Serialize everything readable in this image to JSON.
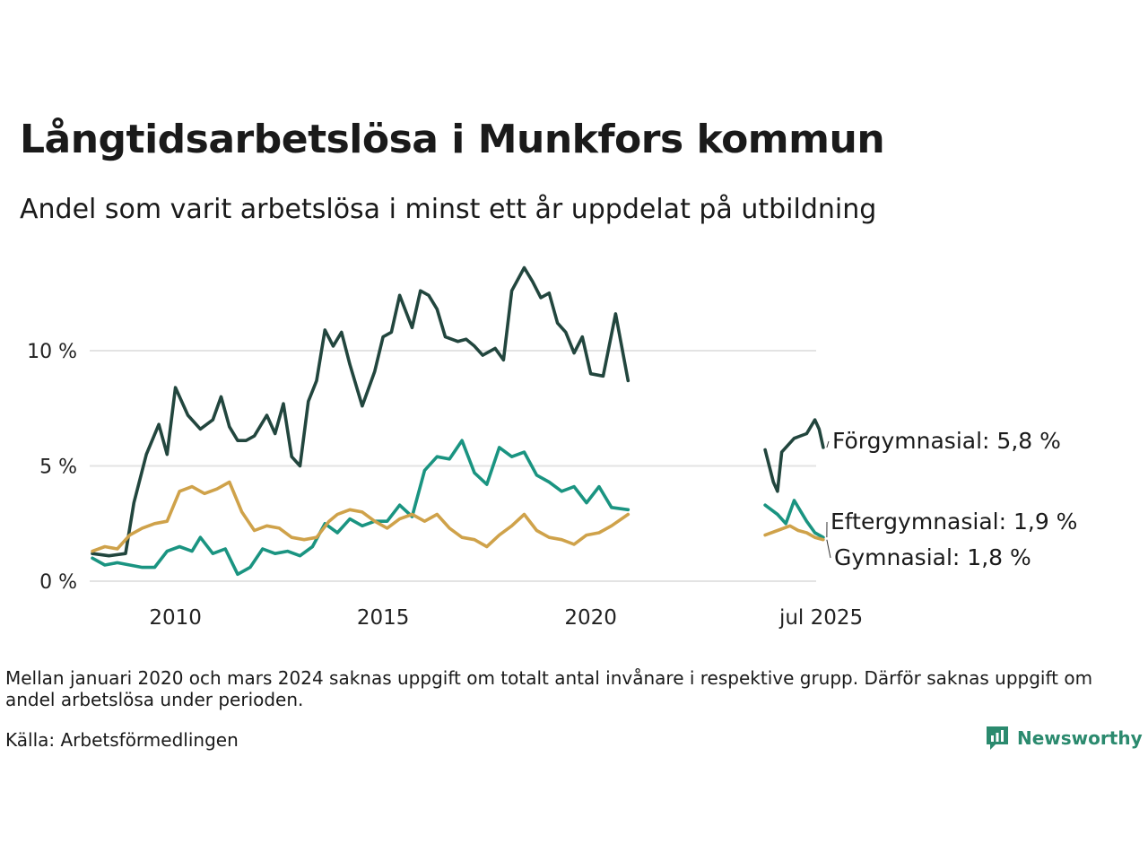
{
  "title": "Långtidsarbetslösa i Munkfors kommun",
  "subtitle": "Andel som varit arbetslösa i minst ett år uppdelat på utbildning",
  "note": "Mellan januari 2020 och mars 2024 saknas uppgift om totalt antal invånare i respektive grupp. Därför saknas uppgift om andel arbetslösa under perioden.",
  "source": "Källa: Arbetsförmedlingen",
  "brand": "Newsworthy",
  "colors": {
    "forgymnasial": "#22463e",
    "eftergymnasial": "#1a9481",
    "gymnasial": "#cfa24a",
    "grid": "#e3e3e3",
    "brand": "#2b8a6e"
  },
  "chart_data": {
    "type": "line",
    "x_ticks": [
      "2010",
      "2015",
      "2020",
      "jul 2025"
    ],
    "y_ticks": [
      "0 %",
      "5 %",
      "10 %"
    ],
    "ylim": [
      0,
      14
    ],
    "grid": true,
    "gap": "Mellan januari 2020 och mars 2024 saknas uppgift",
    "series": [
      {
        "name": "Förgymnasial",
        "end_label": "Förgymnasial: 5,8 %",
        "segments": [
          {
            "x": [
              2008.0,
              2008.4,
              2008.8,
              2009.0,
              2009.3,
              2009.6,
              2009.8,
              2010.0,
              2010.3,
              2010.6,
              2010.9,
              2011.1,
              2011.3,
              2011.5,
              2011.7,
              2011.9,
              2012.2,
              2012.4,
              2012.6,
              2012.8,
              2013.0,
              2013.2,
              2013.4,
              2013.6,
              2013.8,
              2014.0,
              2014.2,
              2014.5,
              2014.8,
              2015.0,
              2015.2,
              2015.4,
              2015.7,
              2015.9,
              2016.1,
              2016.3,
              2016.5,
              2016.8,
              2017.0,
              2017.2,
              2017.4,
              2017.7,
              2017.9,
              2018.1,
              2018.4,
              2018.6,
              2018.8,
              2019.0,
              2019.2,
              2019.4,
              2019.6,
              2019.8,
              2020.0,
              2020.3,
              2020.6,
              2020.9
            ],
            "y": [
              1.2,
              1.1,
              1.2,
              3.4,
              5.5,
              6.8,
              5.5,
              8.4,
              7.2,
              6.6,
              7.0,
              8.0,
              6.7,
              6.1,
              6.1,
              6.3,
              7.2,
              6.4,
              7.7,
              5.4,
              5.0,
              7.8,
              8.7,
              10.9,
              10.2,
              10.8,
              9.4,
              7.6,
              9.1,
              10.6,
              10.8,
              12.4,
              11.0,
              12.6,
              12.4,
              11.8,
              10.6,
              10.4,
              10.5,
              10.2,
              9.8,
              10.1,
              9.6,
              12.6,
              13.6,
              13.0,
              12.3,
              12.5,
              11.2,
              10.8,
              9.9,
              10.6,
              9.0,
              8.9,
              11.6,
              8.7
            ]
          },
          {
            "x": [
              2024.2,
              2024.4,
              2024.5,
              2024.6,
              2024.9,
              2025.2,
              2025.4,
              2025.5,
              2025.6
            ],
            "y": [
              5.7,
              4.3,
              3.9,
              5.6,
              6.2,
              6.4,
              7.0,
              6.6,
              5.8
            ]
          }
        ]
      },
      {
        "name": "Eftergymnasial",
        "end_label": "Eftergymnasial: 1,9 %",
        "segments": [
          {
            "x": [
              2008.0,
              2008.3,
              2008.6,
              2008.9,
              2009.2,
              2009.5,
              2009.8,
              2010.1,
              2010.4,
              2010.6,
              2010.9,
              2011.2,
              2011.5,
              2011.8,
              2012.1,
              2012.4,
              2012.7,
              2013.0,
              2013.3,
              2013.6,
              2013.9,
              2014.2,
              2014.5,
              2014.8,
              2015.1,
              2015.4,
              2015.7,
              2016.0,
              2016.3,
              2016.6,
              2016.9,
              2017.2,
              2017.5,
              2017.8,
              2018.1,
              2018.4,
              2018.7,
              2019.0,
              2019.3,
              2019.6,
              2019.9,
              2020.2,
              2020.5,
              2020.9
            ],
            "y": [
              1.0,
              0.7,
              0.8,
              0.7,
              0.6,
              0.6,
              1.3,
              1.5,
              1.3,
              1.9,
              1.2,
              1.4,
              0.3,
              0.6,
              1.4,
              1.2,
              1.3,
              1.1,
              1.5,
              2.5,
              2.1,
              2.7,
              2.4,
              2.6,
              2.6,
              3.3,
              2.8,
              4.8,
              5.4,
              5.3,
              6.1,
              4.7,
              4.2,
              5.8,
              5.4,
              5.6,
              4.6,
              4.3,
              3.9,
              4.1,
              3.4,
              4.1,
              3.2,
              3.1
            ]
          },
          {
            "x": [
              2024.2,
              2024.5,
              2024.7,
              2024.9,
              2025.2,
              2025.4,
              2025.6
            ],
            "y": [
              3.3,
              2.9,
              2.5,
              3.5,
              2.6,
              2.1,
              1.9
            ]
          }
        ]
      },
      {
        "name": "Gymnasial",
        "end_label": "Gymnasial: 1,8 %",
        "segments": [
          {
            "x": [
              2008.0,
              2008.3,
              2008.6,
              2008.9,
              2009.2,
              2009.5,
              2009.8,
              2010.1,
              2010.4,
              2010.7,
              2011.0,
              2011.3,
              2011.6,
              2011.9,
              2012.2,
              2012.5,
              2012.8,
              2013.1,
              2013.4,
              2013.7,
              2013.9,
              2014.2,
              2014.5,
              2014.8,
              2015.1,
              2015.4,
              2015.7,
              2016.0,
              2016.3,
              2016.6,
              2016.9,
              2017.2,
              2017.5,
              2017.8,
              2018.1,
              2018.4,
              2018.7,
              2019.0,
              2019.3,
              2019.6,
              2019.9,
              2020.2,
              2020.5,
              2020.9
            ],
            "y": [
              1.3,
              1.5,
              1.4,
              2.0,
              2.3,
              2.5,
              2.6,
              3.9,
              4.1,
              3.8,
              4.0,
              4.3,
              3.0,
              2.2,
              2.4,
              2.3,
              1.9,
              1.8,
              1.9,
              2.6,
              2.9,
              3.1,
              3.0,
              2.6,
              2.3,
              2.7,
              2.9,
              2.6,
              2.9,
              2.3,
              1.9,
              1.8,
              1.5,
              2.0,
              2.4,
              2.9,
              2.2,
              1.9,
              1.8,
              1.6,
              2.0,
              2.1,
              2.4,
              2.9
            ]
          },
          {
            "x": [
              2024.2,
              2024.5,
              2024.8,
              2025.0,
              2025.2,
              2025.4,
              2025.6
            ],
            "y": [
              2.0,
              2.2,
              2.4,
              2.2,
              2.1,
              1.9,
              1.8
            ]
          }
        ]
      }
    ]
  }
}
